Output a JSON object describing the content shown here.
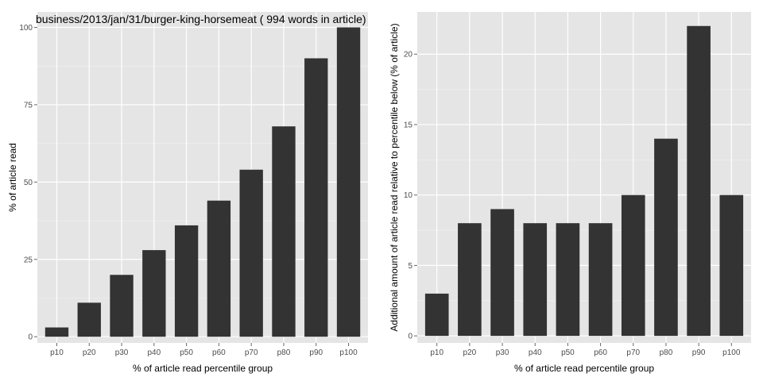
{
  "chart_data": [
    {
      "type": "bar",
      "title": "business/2013/jan/31/burger-king-horsemeat ( 994 words in article)",
      "xlabel": "% of article read percentile group",
      "ylabel": "% of article read",
      "categories": [
        "p10",
        "p20",
        "p30",
        "p40",
        "p50",
        "p60",
        "p70",
        "p80",
        "p90",
        "p100"
      ],
      "values": [
        3,
        11,
        20,
        28,
        36,
        44,
        54,
        68,
        90,
        100
      ],
      "ylim": [
        -2,
        105
      ],
      "yticks": [
        0,
        25,
        50,
        75,
        100
      ],
      "grid": true,
      "bar_color": "#333333",
      "panel_color": "#e5e5e5"
    },
    {
      "type": "bar",
      "title": "",
      "xlabel": "% of article read percentile group",
      "ylabel": "Additional amount of article read relative to percentile below (% of article)",
      "categories": [
        "p10",
        "p20",
        "p30",
        "p40",
        "p50",
        "p60",
        "p70",
        "p80",
        "p90",
        "p100"
      ],
      "values": [
        3,
        8,
        9,
        8,
        8,
        8,
        10,
        14,
        22,
        10
      ],
      "ylim": [
        -0.5,
        23.0
      ],
      "yticks": [
        0,
        5,
        10,
        15,
        20
      ],
      "grid": true,
      "bar_color": "#333333",
      "panel_color": "#e5e5e5"
    }
  ]
}
